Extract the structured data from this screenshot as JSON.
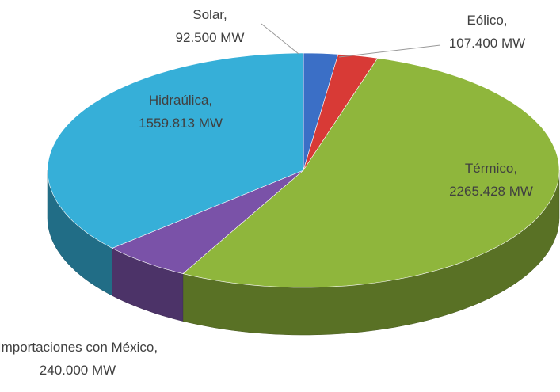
{
  "chart_data": {
    "type": "pie",
    "categories": [
      "Solar",
      "Eólico",
      "Térmico",
      "Importaciones con México",
      "Hidraúlica"
    ],
    "values": [
      92.5,
      107.4,
      2265.428,
      240,
      1559.813
    ],
    "value_labels": [
      "92.500 MW",
      "107.400 MW",
      "2265.428 MW",
      "240.000 MW",
      "1559.813 MW"
    ],
    "label_separator": ",",
    "colors": [
      "#3b6fc6",
      "#d83a36",
      "#8fb63c",
      "#7a52a8",
      "#36afd8"
    ]
  }
}
